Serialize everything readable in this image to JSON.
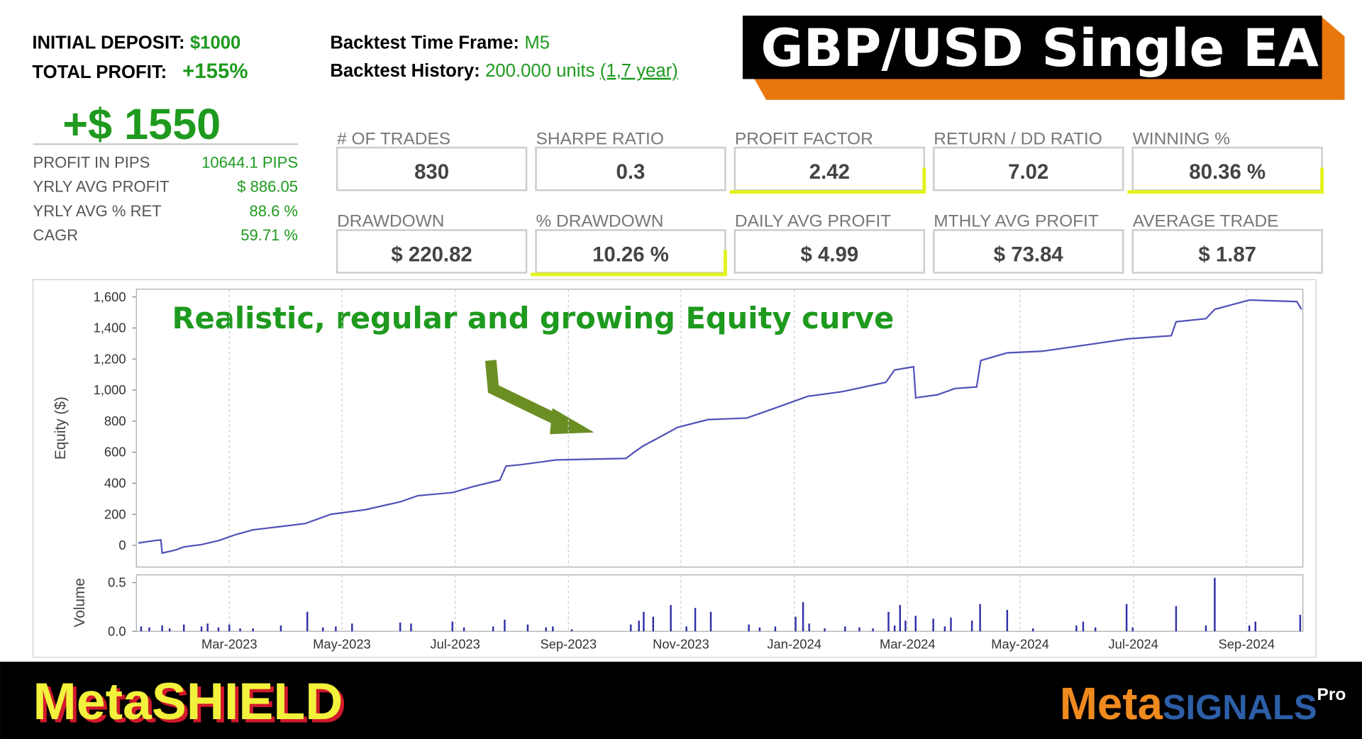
{
  "header": {
    "deposit_label": "INITIAL DEPOSIT:",
    "deposit_value": "$1000",
    "profit_label": "TOTAL PROFIT:",
    "profit_value": "+155%",
    "timeframe_label": "Backtest Time Frame:",
    "timeframe_value": "M5",
    "history_label": "Backtest History:",
    "history_value": "200.000 units",
    "history_period": "(1,7 year)",
    "title": "GBP/USD Single EA"
  },
  "summary": {
    "total": "+$ 1550",
    "rows": [
      {
        "label": "PROFIT IN PIPS",
        "value": "10644.1 PIPS"
      },
      {
        "label": "YRLY AVG PROFIT",
        "value": "$ 886.05"
      },
      {
        "label": "YRLY AVG % RET",
        "value": "88.6 %"
      },
      {
        "label": "CAGR",
        "value": "59.71 %"
      }
    ]
  },
  "metrics": [
    {
      "label": "# OF TRADES",
      "value": "830"
    },
    {
      "label": "SHARPE RATIO",
      "value": "0.3"
    },
    {
      "label": "PROFIT FACTOR",
      "value": "2.42",
      "highlighted": true
    },
    {
      "label": "RETURN / DD RATIO",
      "value": "7.02"
    },
    {
      "label": "WINNING %",
      "value": "80.36 %",
      "highlighted": true
    },
    {
      "label": "DRAWDOWN",
      "value": "$ 220.82"
    },
    {
      "label": "% DRAWDOWN",
      "value": "10.26 %",
      "highlighted": true
    },
    {
      "label": "DAILY AVG PROFIT",
      "value": "$ 4.99"
    },
    {
      "label": "MTHLY AVG PROFIT",
      "value": "$ 73.84"
    },
    {
      "label": "AVERAGE TRADE",
      "value": "$ 1.87"
    }
  ],
  "chart_data": [
    {
      "type": "line",
      "y_label": "Equity ($)",
      "annotation": "Realistic, regular and growing Equity curve",
      "color": "#5050b8",
      "grid": true,
      "x": [
        2023.033,
        2023.056,
        2023.066,
        2023.068,
        2023.088,
        2023.1,
        2023.126,
        2023.151,
        2023.177,
        2023.202,
        2023.241,
        2023.279,
        2023.317,
        2023.368,
        2023.419,
        2023.445,
        2023.496,
        2023.528,
        2023.566,
        2023.575,
        2023.598,
        2023.649,
        2023.752,
        2023.764,
        2023.777,
        2023.803,
        2023.828,
        2023.873,
        2023.93,
        2023.969,
        2024.02,
        2024.071,
        2024.135,
        2024.148,
        2024.176,
        2024.179,
        2024.211,
        2024.237,
        2024.269,
        2024.275,
        2024.314,
        2024.365,
        2024.429,
        2024.492,
        2024.556,
        2024.563,
        2024.607,
        2024.62,
        2024.671,
        2024.741,
        2024.748
      ],
      "values": [
        15,
        30,
        35,
        -50,
        -30,
        -10,
        5,
        30,
        70,
        100,
        120,
        140,
        200,
        230,
        280,
        320,
        340,
        380,
        420,
        510,
        520,
        550,
        560,
        600,
        640,
        700,
        760,
        810,
        820,
        880,
        960,
        990,
        1050,
        1130,
        1150,
        950,
        970,
        1010,
        1020,
        1190,
        1240,
        1250,
        1290,
        1330,
        1350,
        1440,
        1460,
        1520,
        1580,
        1570,
        1520
      ],
      "xlim": [
        2023.03,
        2024.75
      ],
      "xticks": [
        2023.167,
        2023.333,
        2023.5,
        2023.667,
        2023.833,
        2024.0,
        2024.167,
        2024.333,
        2024.5,
        2024.667
      ],
      "ylim": [
        -140,
        1650
      ],
      "yticks": [
        0,
        200,
        400,
        600,
        800,
        {
          "value": 1000,
          "label": "1,000"
        },
        {
          "value": 1200,
          "label": "1,200"
        },
        {
          "value": 1400,
          "label": "1,400"
        },
        {
          "value": 1600,
          "label": "1,600"
        }
      ]
    },
    {
      "type": "bar",
      "y_label": "Volume",
      "color": "#3030a8",
      "grid": true,
      "x": [
        2023.037,
        2023.049,
        2023.068,
        2023.079,
        2023.1,
        2023.126,
        2023.135,
        2023.151,
        2023.167,
        2023.183,
        2023.202,
        2023.243,
        2023.282,
        2023.305,
        2023.324,
        2023.348,
        2023.419,
        2023.435,
        2023.496,
        2023.513,
        2023.556,
        2023.573,
        2023.607,
        2023.634,
        2023.644,
        2023.672,
        2023.759,
        2023.771,
        2023.778,
        2023.792,
        2023.818,
        2023.841,
        2023.854,
        2023.877,
        2023.933,
        2023.949,
        2023.972,
        2024.002,
        2024.013,
        2024.022,
        2024.045,
        2024.075,
        2024.096,
        2024.116,
        2024.139,
        2024.148,
        2024.156,
        2024.164,
        2024.179,
        2024.205,
        2024.222,
        2024.231,
        2024.262,
        2024.274,
        2024.314,
        2024.352,
        2024.416,
        2024.426,
        2024.444,
        2024.49,
        2024.499,
        2024.563,
        2024.607,
        2024.62,
        2024.671,
        2024.68,
        2024.746
      ],
      "values": [
        0.05,
        0.04,
        0.06,
        0.03,
        0.07,
        0.05,
        0.08,
        0.04,
        0.07,
        0.03,
        0.03,
        0.06,
        0.2,
        0.04,
        0.05,
        0.08,
        0.09,
        0.08,
        0.1,
        0.04,
        0.05,
        0.12,
        0.07,
        0.04,
        0.05,
        0.02,
        0.07,
        0.11,
        0.2,
        0.15,
        0.27,
        0.05,
        0.24,
        0.2,
        0.07,
        0.04,
        0.05,
        0.15,
        0.3,
        0.08,
        0.03,
        0.05,
        0.04,
        0.03,
        0.2,
        0.06,
        0.27,
        0.11,
        0.16,
        0.13,
        0.05,
        0.14,
        0.11,
        0.28,
        0.22,
        0.03,
        0.06,
        0.1,
        0.04,
        0.28,
        0.04,
        0.26,
        0.06,
        0.55,
        0.06,
        0.1,
        0.17
      ],
      "xlim": [
        2023.03,
        2024.75
      ],
      "xticks": [
        {
          "value": 2023.167,
          "label": "Mar-2023"
        },
        {
          "value": 2023.333,
          "label": "May-2023"
        },
        {
          "value": 2023.5,
          "label": "Jul-2023"
        },
        {
          "value": 2023.667,
          "label": "Sep-2023"
        },
        {
          "value": 2023.833,
          "label": "Nov-2023"
        },
        {
          "value": 2024.0,
          "label": "Jan-2024"
        },
        {
          "value": 2024.167,
          "label": "Mar-2024"
        },
        {
          "value": 2024.333,
          "label": "May-2024"
        },
        {
          "value": 2024.5,
          "label": "Jul-2024"
        },
        {
          "value": 2024.667,
          "label": "Sep-2024"
        }
      ],
      "ylim": [
        0,
        0.58
      ],
      "yticks": [
        {
          "value": 0,
          "label": "0.0"
        },
        {
          "value": 0.5,
          "label": "0.5"
        }
      ]
    }
  ],
  "footer": {
    "brand": "MetaSHIELD",
    "partner": "Meta",
    "partner_accent": "SIGNALS",
    "partner_sup": "Pro"
  }
}
